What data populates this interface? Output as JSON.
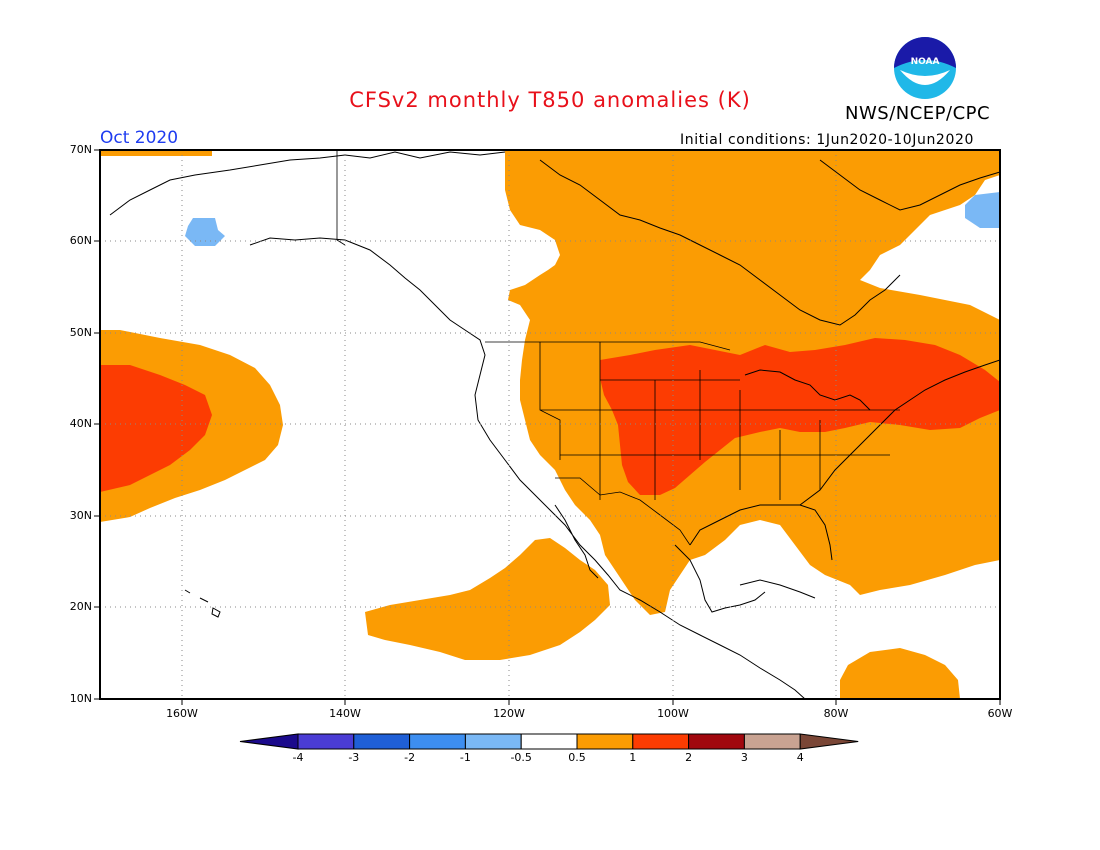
{
  "header": {
    "title": "CFSv2 monthly T850 anomalies (K)",
    "agency": "NWS/NCEP/CPC",
    "logo_text": "NOAA",
    "month": "Oct 2020",
    "initial_conditions": "Initial conditions: 1Jun2020-10Jun2020"
  },
  "map": {
    "lat_labels": [
      "70N",
      "60N",
      "50N",
      "40N",
      "30N",
      "20N",
      "10N"
    ],
    "lon_labels": [
      "160W",
      "140W",
      "120W",
      "100W",
      "80W",
      "60W"
    ]
  },
  "colorbar": {
    "tick_labels": [
      "-4",
      "-3",
      "-2",
      "-1",
      "-0.5",
      "0.5",
      "1",
      "2",
      "3",
      "4"
    ],
    "colors": [
      "#1b0a8c",
      "#4a3cd4",
      "#1f5fd6",
      "#3d8ef0",
      "#7ab8f5",
      "#ffffff",
      "#fb9c03",
      "#fc3c02",
      "#a1080e",
      "#c9a392",
      "#7a4636"
    ]
  },
  "colors": {
    "title": "#e8101a",
    "month": "#1e3cf0",
    "orange": "#fb9c03",
    "red": "#fc3c02",
    "light_blue": "#7ab8f5"
  }
}
